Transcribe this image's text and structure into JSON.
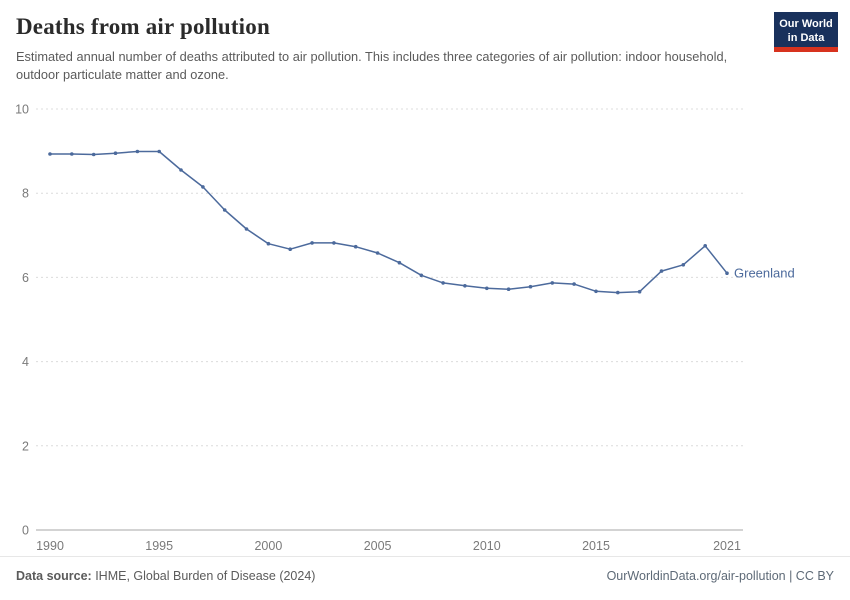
{
  "header": {
    "title": "Deaths from air pollution",
    "subtitle": "Estimated annual number of deaths attributed to air pollution. This includes three categories of air pollution: indoor household, outdoor particulate matter and ozone.",
    "logo": {
      "line1": "Our World",
      "line2": "in Data",
      "bg_color": "#19315c",
      "accent_color": "#d7321e"
    }
  },
  "chart_data": {
    "type": "line",
    "title": "Deaths from air pollution",
    "xlabel": "",
    "ylabel": "",
    "xlim": [
      1990,
      2021
    ],
    "ylim": [
      0,
      10
    ],
    "x_ticks": [
      1990,
      1995,
      2000,
      2005,
      2010,
      2015,
      2021
    ],
    "y_ticks": [
      0,
      2,
      4,
      6,
      8,
      10
    ],
    "grid": "horizontal-dashed",
    "legend_position": "end-of-line",
    "series": [
      {
        "name": "Greenland",
        "color": "#4c6a9c",
        "x": [
          1990,
          1991,
          1992,
          1993,
          1994,
          1995,
          1996,
          1997,
          1998,
          1999,
          2000,
          2001,
          2002,
          2003,
          2004,
          2005,
          2006,
          2007,
          2008,
          2009,
          2010,
          2011,
          2012,
          2013,
          2014,
          2015,
          2016,
          2017,
          2018,
          2019,
          2020,
          2021
        ],
        "values": [
          8.93,
          8.93,
          8.92,
          8.95,
          8.99,
          8.99,
          8.55,
          8.15,
          7.6,
          7.15,
          6.8,
          6.67,
          6.82,
          6.82,
          6.73,
          6.58,
          6.35,
          6.05,
          5.87,
          5.8,
          5.74,
          5.72,
          5.78,
          5.87,
          5.84,
          5.67,
          5.64,
          5.66,
          6.15,
          6.3,
          6.75,
          6.1
        ]
      }
    ]
  },
  "footer": {
    "source_label": "Data source:",
    "source_text": " IHME, Global Burden of Disease (2024)",
    "right_text": "OurWorldinData.org/air-pollution | CC BY"
  }
}
